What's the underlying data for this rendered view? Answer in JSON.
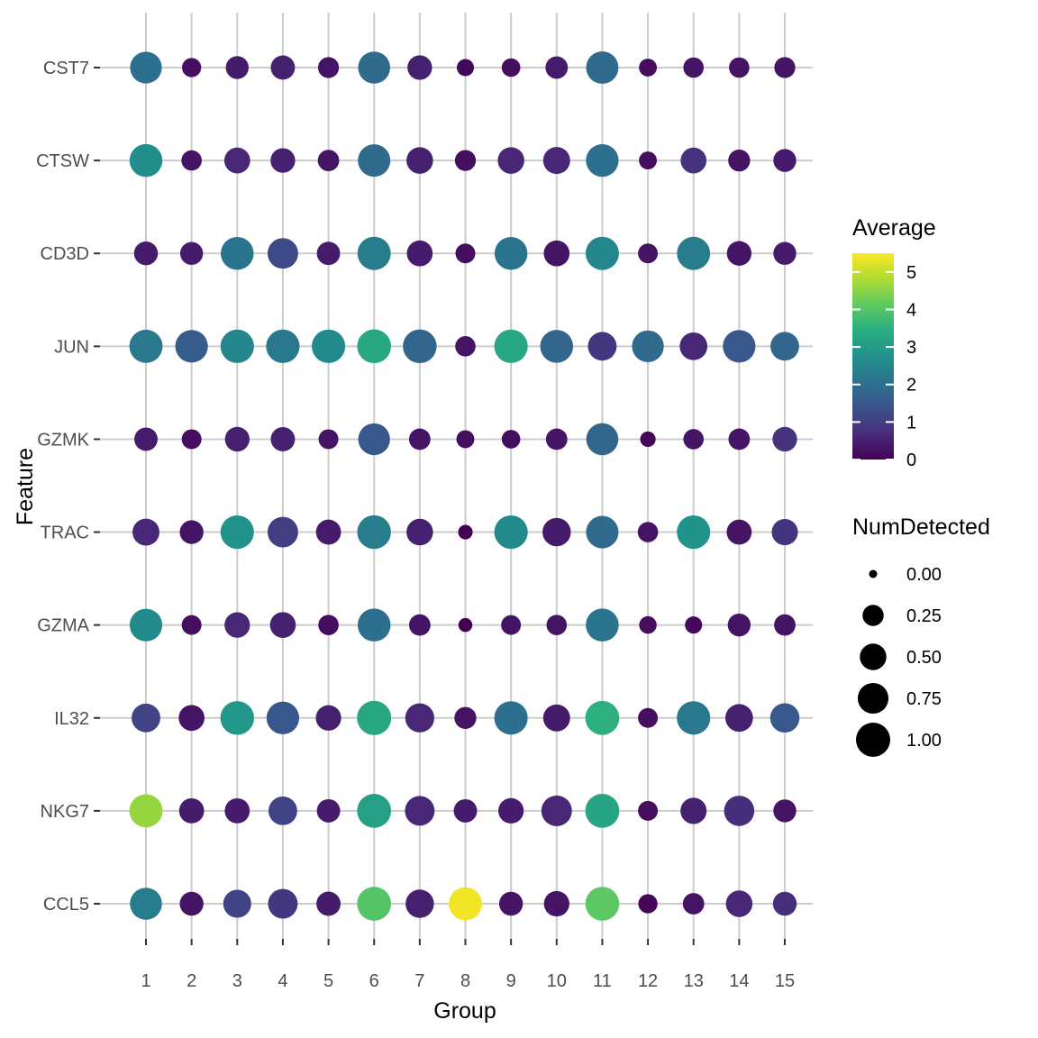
{
  "chart_data": {
    "type": "scatter",
    "subtype": "dot-plot",
    "xlabel": "Group",
    "ylabel": "Feature",
    "groups": [
      "1",
      "2",
      "3",
      "4",
      "5",
      "6",
      "7",
      "8",
      "9",
      "10",
      "11",
      "12",
      "13",
      "14",
      "15"
    ],
    "features": [
      "CST7",
      "CTSW",
      "CD3D",
      "JUN",
      "GZMK",
      "TRAC",
      "GZMA",
      "IL32",
      "NKG7",
      "CCL5"
    ],
    "grid": true,
    "color_scale": "viridis",
    "legends": {
      "color": {
        "title": "Average",
        "min": 0,
        "max": 5.5,
        "ticks": [
          "0",
          "1",
          "2",
          "3",
          "4",
          "5"
        ],
        "placement": "right"
      },
      "size": {
        "title": "NumDetected",
        "min": 0,
        "max": 1,
        "ticks": [
          "0.00",
          "0.25",
          "0.50",
          "0.75",
          "1.00"
        ],
        "placement": "right"
      }
    },
    "average": {
      "CST7": [
        2.0,
        0.2,
        0.4,
        0.5,
        0.3,
        1.9,
        0.5,
        0.1,
        0.2,
        0.4,
        1.9,
        0.2,
        0.3,
        0.3,
        0.3
      ],
      "CTSW": [
        2.7,
        0.3,
        0.6,
        0.5,
        0.3,
        1.9,
        0.5,
        0.2,
        0.6,
        0.6,
        2.0,
        0.2,
        0.8,
        0.3,
        0.4
      ],
      "CD3D": [
        0.4,
        0.4,
        2.1,
        1.2,
        0.4,
        2.3,
        0.4,
        0.2,
        2.1,
        0.3,
        2.5,
        0.3,
        2.3,
        0.3,
        0.4
      ],
      "JUN": [
        2.2,
        1.6,
        2.5,
        2.2,
        2.6,
        3.3,
        1.8,
        0.3,
        3.3,
        1.8,
        0.9,
        1.9,
        0.6,
        1.5,
        1.8
      ],
      "GZMK": [
        0.4,
        0.2,
        0.5,
        0.5,
        0.3,
        1.5,
        0.3,
        0.2,
        0.2,
        0.3,
        1.8,
        0.1,
        0.3,
        0.3,
        0.8
      ],
      "TRAC": [
        0.6,
        0.3,
        2.8,
        1.0,
        0.4,
        2.3,
        0.5,
        0.0,
        2.6,
        0.4,
        1.9,
        0.3,
        2.8,
        0.3,
        0.8
      ],
      "GZMA": [
        2.6,
        0.2,
        0.6,
        0.5,
        0.2,
        2.0,
        0.3,
        0.0,
        0.3,
        0.3,
        2.1,
        0.2,
        0.1,
        0.3,
        0.3
      ],
      "IL32": [
        1.1,
        0.3,
        2.9,
        1.5,
        0.5,
        3.3,
        0.6,
        0.3,
        2.0,
        0.4,
        3.5,
        0.2,
        2.2,
        0.5,
        1.5
      ],
      "NKG7": [
        4.6,
        0.4,
        0.4,
        1.1,
        0.4,
        3.1,
        0.6,
        0.4,
        0.4,
        0.6,
        3.2,
        0.2,
        0.5,
        0.7,
        0.3
      ],
      "CCL5": [
        2.3,
        0.3,
        1.1,
        0.9,
        0.4,
        4.0,
        0.5,
        5.4,
        0.3,
        0.3,
        4.1,
        0.1,
        0.3,
        0.6,
        0.7
      ]
    },
    "num_detected": {
      "CST7": [
        0.82,
        0.18,
        0.32,
        0.38,
        0.24,
        0.84,
        0.4,
        0.12,
        0.16,
        0.3,
        0.86,
        0.14,
        0.22,
        0.22,
        0.24
      ],
      "CTSW": [
        0.9,
        0.22,
        0.46,
        0.4,
        0.26,
        0.87,
        0.5,
        0.24,
        0.5,
        0.52,
        0.88,
        0.14,
        0.46,
        0.28,
        0.32
      ],
      "CD3D": [
        0.36,
        0.32,
        0.9,
        0.74,
        0.34,
        0.93,
        0.46,
        0.2,
        0.9,
        0.46,
        0.93,
        0.2,
        0.92,
        0.4,
        0.32
      ],
      "JUN": [
        0.92,
        0.88,
        0.94,
        0.94,
        0.94,
        0.97,
        0.96,
        0.22,
        0.94,
        0.9,
        0.62,
        0.82,
        0.56,
        0.88,
        0.62
      ],
      "GZMK": [
        0.34,
        0.2,
        0.4,
        0.38,
        0.2,
        0.82,
        0.26,
        0.14,
        0.16,
        0.26,
        0.84,
        0.08,
        0.22,
        0.26,
        0.4
      ],
      "TRAC": [
        0.52,
        0.36,
        0.94,
        0.74,
        0.42,
        0.96,
        0.5,
        0.06,
        0.94,
        0.6,
        0.87,
        0.22,
        0.94,
        0.42,
        0.48
      ],
      "GZMA": [
        0.88,
        0.2,
        0.44,
        0.46,
        0.22,
        0.9,
        0.26,
        0.05,
        0.2,
        0.22,
        0.9,
        0.13,
        0.12,
        0.32,
        0.26
      ],
      "IL32": [
        0.62,
        0.46,
        0.96,
        0.88,
        0.44,
        1.0,
        0.64,
        0.28,
        0.94,
        0.52,
        0.98,
        0.2,
        0.94,
        0.56,
        0.66
      ],
      "NKG7": [
        0.92,
        0.42,
        0.42,
        0.62,
        0.34,
        0.98,
        0.68,
        0.34,
        0.44,
        0.74,
        0.98,
        0.2,
        0.48,
        0.72,
        0.32
      ],
      "CCL5": [
        0.84,
        0.36,
        0.58,
        0.68,
        0.38,
        0.98,
        0.6,
        0.92,
        0.36,
        0.44,
        0.97,
        0.18,
        0.26,
        0.5,
        0.36
      ]
    }
  }
}
